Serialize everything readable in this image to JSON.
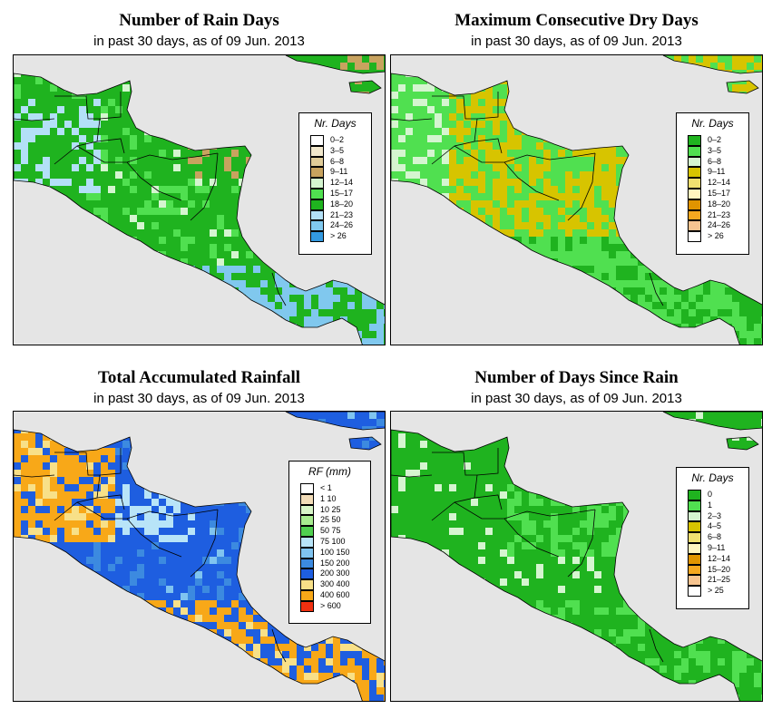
{
  "panels": [
    {
      "id": "rain-days",
      "title": "Number of Rain Days",
      "subtitle": "in past 30 days, as of  09 Jun. 2013",
      "legend_title": "Nr. Days",
      "legend": [
        {
          "label": "0–2",
          "color": "#ffffff"
        },
        {
          "label": "3–5",
          "color": "#f2e8cc"
        },
        {
          "label": "6–8",
          "color": "#e0cc98"
        },
        {
          "label": "9–11",
          "color": "#c8a35f"
        },
        {
          "label": "12–14",
          "color": "#d5f5d0"
        },
        {
          "label": "15–17",
          "color": "#50e050"
        },
        {
          "label": "18–20",
          "color": "#1fb31f"
        },
        {
          "label": "21–23",
          "color": "#b3e0f7"
        },
        {
          "label": "24–26",
          "color": "#80c8ee"
        },
        {
          "label": "> 26",
          "color": "#3399e0"
        }
      ],
      "land_base": "#1fb31f"
    },
    {
      "id": "max-dry-days",
      "title": "Maximum Consecutive Dry Days",
      "subtitle": "in past 30 days, as of  09 Jun. 2013",
      "legend_title": "Nr. Days",
      "legend": [
        {
          "label": "0–2",
          "color": "#1fb31f"
        },
        {
          "label": "3–5",
          "color": "#50e050"
        },
        {
          "label": "6–8",
          "color": "#d5f5d0"
        },
        {
          "label": "9–11",
          "color": "#d7c400"
        },
        {
          "label": "12–14",
          "color": "#f0e070"
        },
        {
          "label": "15–17",
          "color": "#fff5bf"
        },
        {
          "label": "18–20",
          "color": "#e09400"
        },
        {
          "label": "21–23",
          "color": "#f5a820"
        },
        {
          "label": "24–26",
          "color": "#f7c490"
        },
        {
          "label": "> 26",
          "color": "#ffffff"
        }
      ],
      "land_base": "#50e050"
    },
    {
      "id": "total-rainfall",
      "title": "Total Accumulated Rainfall",
      "subtitle": "in past 30 days, as of  09 Jun. 2013",
      "legend_title": "RF (mm)",
      "legend": [
        {
          "label": "< 1",
          "color": "#ffffff"
        },
        {
          "label": "1  10",
          "color": "#f2dcb8"
        },
        {
          "label": "10  25",
          "color": "#d8f5c8"
        },
        {
          "label": "25  50",
          "color": "#a8ec90"
        },
        {
          "label": "50  75",
          "color": "#50d050"
        },
        {
          "label": "75  100",
          "color": "#b8e4f8"
        },
        {
          "label": "100  150",
          "color": "#80c4f0"
        },
        {
          "label": "150  200",
          "color": "#3c8ae0"
        },
        {
          "label": "200  300",
          "color": "#1e5ee0"
        },
        {
          "label": "300  400",
          "color": "#f8e088"
        },
        {
          "label": "400  600",
          "color": "#f8a818"
        },
        {
          "label": "> 600",
          "color": "#f03010"
        }
      ],
      "land_base": "#1e5ee0"
    },
    {
      "id": "days-since-rain",
      "title": "Number of Days Since Rain",
      "subtitle": "in past 30 days, as of  09 Jun. 2013",
      "legend_title": "Nr. Days",
      "legend": [
        {
          "label": "0",
          "color": "#1fb31f"
        },
        {
          "label": "1",
          "color": "#50e050"
        },
        {
          "label": "2–3",
          "color": "#d5f5d0"
        },
        {
          "label": "4–5",
          "color": "#d7c400"
        },
        {
          "label": "6–8",
          "color": "#f0e070"
        },
        {
          "label": "9–11",
          "color": "#fff5bf"
        },
        {
          "label": "12–14",
          "color": "#e09400"
        },
        {
          "label": "15–20",
          "color": "#f5a820"
        },
        {
          "label": "21–25",
          "color": "#f7c490"
        },
        {
          "label": "> 25",
          "color": "#ffffff"
        }
      ],
      "land_base": "#1fb31f"
    }
  ]
}
